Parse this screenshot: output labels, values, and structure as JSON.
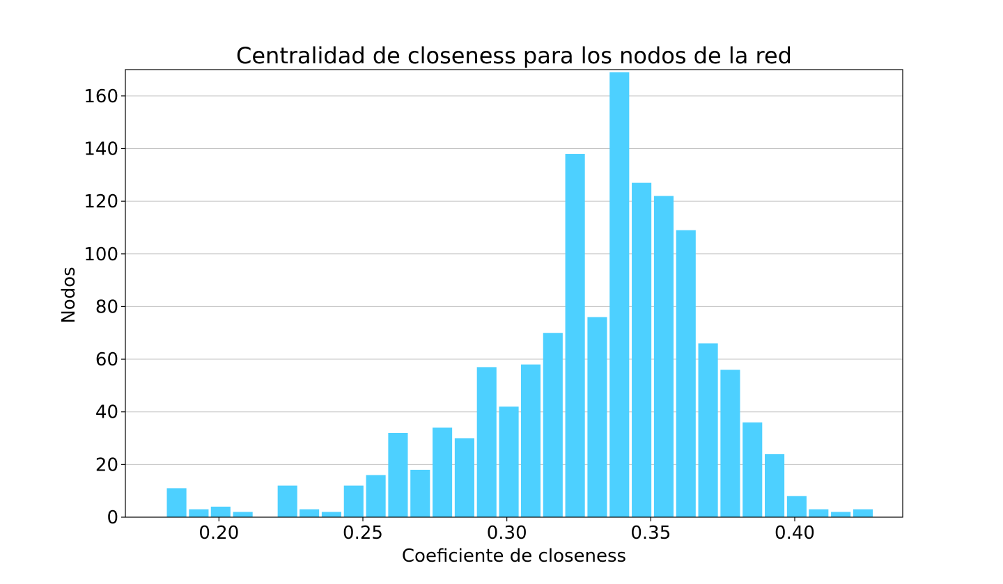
{
  "chart_data": {
    "type": "bar",
    "title": "Centralidad de closeness para los nodos de la red",
    "xlabel": "Coeficiente de closeness",
    "ylabel": "Nodos",
    "xlim": [
      0.1675,
      0.4375
    ],
    "ylim": [
      0,
      170
    ],
    "xticks": [
      0.2,
      0.25,
      0.3,
      0.35,
      0.4
    ],
    "xtick_labels": [
      "0.20",
      "0.25",
      "0.30",
      "0.35",
      "0.40"
    ],
    "yticks": [
      0,
      20,
      40,
      60,
      80,
      100,
      120,
      140,
      160
    ],
    "ytick_labels": [
      "0",
      "20",
      "40",
      "60",
      "80",
      "100",
      "120",
      "140",
      "160"
    ],
    "grid": "y",
    "bar_color": "#4dd0ff",
    "bar_width": 0.0068,
    "x": [
      0.1853,
      0.193,
      0.2006,
      0.2083,
      0.2238,
      0.2314,
      0.2391,
      0.2468,
      0.2545,
      0.2622,
      0.2699,
      0.2776,
      0.2853,
      0.293,
      0.3007,
      0.3083,
      0.316,
      0.3237,
      0.3314,
      0.3391,
      0.3468,
      0.3545,
      0.3622,
      0.3699,
      0.3776,
      0.3853,
      0.393,
      0.4007,
      0.4083,
      0.416,
      0.4237
    ],
    "values": [
      11,
      3,
      4,
      2,
      12,
      3,
      2,
      12,
      16,
      32,
      18,
      34,
      30,
      57,
      42,
      58,
      70,
      138,
      76,
      169,
      127,
      122,
      109,
      66,
      56,
      36,
      24,
      8,
      3,
      2,
      3
    ]
  }
}
